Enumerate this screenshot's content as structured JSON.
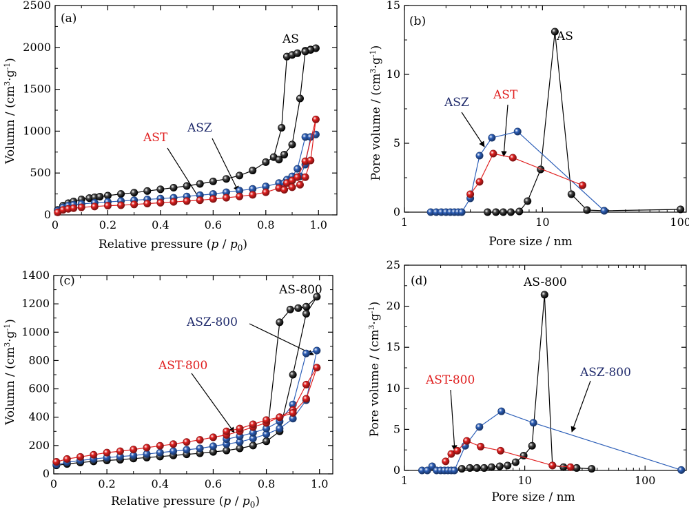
{
  "colors": {
    "AS": "#000000",
    "ASZ": "#2d5fb8",
    "AST": "#e02020",
    "ASZ_label": "#1f2a6b",
    "AST_label": "#e02020",
    "AS_label": "#000000"
  },
  "chart_data": [
    {
      "panel": "(a)",
      "type": "line",
      "xlabel": "Relative pressure (p / p0)",
      "ylabel": "Volumn / (cm3·g-1)",
      "xlim": [
        0,
        1.07
      ],
      "ylim": [
        0,
        2500
      ],
      "xticks": [
        0,
        0.2,
        0.4,
        0.6,
        0.8,
        1.0
      ],
      "xtick_labels": [
        "0",
        "0.2",
        "0.4",
        "0.6",
        "0.8",
        "1.0"
      ],
      "yticks": [
        0,
        500,
        1000,
        1500,
        2000,
        2500
      ],
      "ytick_labels": [
        "0",
        "500",
        "1000",
        "1500",
        "2000",
        "2500"
      ],
      "series": [
        {
          "name": "AS",
          "color_key": "AS",
          "x": [
            0.01,
            0.03,
            0.05,
            0.07,
            0.1,
            0.13,
            0.15,
            0.17,
            0.2,
            0.25,
            0.3,
            0.35,
            0.4,
            0.45,
            0.5,
            0.55,
            0.6,
            0.65,
            0.7,
            0.75,
            0.8,
            0.83,
            0.86,
            0.88,
            0.9,
            0.92,
            0.95,
            0.97,
            0.99,
            0.97,
            0.95,
            0.93,
            0.9,
            0.87,
            0.85
          ],
          "y": [
            60,
            110,
            140,
            160,
            185,
            200,
            210,
            218,
            230,
            250,
            265,
            285,
            305,
            325,
            345,
            370,
            400,
            430,
            470,
            530,
            630,
            690,
            1040,
            1890,
            1910,
            1930,
            1960,
            1975,
            1990,
            1970,
            1950,
            1390,
            840,
            720,
            660
          ]
        },
        {
          "name": "ASZ",
          "color_key": "ASZ",
          "x": [
            0.01,
            0.03,
            0.05,
            0.07,
            0.1,
            0.15,
            0.2,
            0.25,
            0.3,
            0.35,
            0.4,
            0.45,
            0.5,
            0.55,
            0.6,
            0.65,
            0.7,
            0.75,
            0.8,
            0.85,
            0.88,
            0.9,
            0.92,
            0.95,
            0.99,
            0.97,
            0.95,
            0.93,
            0.9,
            0.87
          ],
          "y": [
            50,
            90,
            110,
            120,
            130,
            145,
            155,
            165,
            175,
            185,
            195,
            205,
            220,
            235,
            250,
            270,
            290,
            310,
            340,
            380,
            420,
            460,
            550,
            930,
            960,
            930,
            600,
            460,
            410,
            380
          ]
        },
        {
          "name": "AST",
          "color_key": "AST",
          "x": [
            0.01,
            0.03,
            0.05,
            0.07,
            0.1,
            0.15,
            0.2,
            0.25,
            0.3,
            0.35,
            0.4,
            0.45,
            0.5,
            0.55,
            0.6,
            0.65,
            0.7,
            0.75,
            0.8,
            0.85,
            0.88,
            0.9,
            0.92,
            0.95,
            0.99,
            0.97,
            0.95,
            0.93,
            0.9,
            0.87
          ],
          "y": [
            30,
            60,
            72,
            80,
            90,
            100,
            110,
            115,
            125,
            135,
            145,
            155,
            165,
            175,
            190,
            205,
            220,
            240,
            270,
            320,
            380,
            410,
            450,
            640,
            1140,
            650,
            450,
            360,
            330,
            300
          ]
        }
      ],
      "annotations": [
        {
          "text": "AS",
          "color_key": "AS_label"
        },
        {
          "text": "AST",
          "color_key": "AST_label"
        },
        {
          "text": "ASZ",
          "color_key": "ASZ_label"
        }
      ]
    },
    {
      "panel": "(b)",
      "type": "line",
      "xscale": "log",
      "xlabel": "Pore size / nm",
      "ylabel": "Pore volume / (cm3·g-1)",
      "xlim": [
        1,
        110
      ],
      "ylim": [
        0,
        15
      ],
      "xticks": [
        1,
        10,
        100
      ],
      "xtick_labels": [
        "1",
        "10",
        "100"
      ],
      "yticks": [
        0,
        5,
        10,
        15
      ],
      "ytick_labels": [
        "0",
        "5",
        "10",
        "15"
      ],
      "series": [
        {
          "name": "AS",
          "color_key": "AS",
          "x": [
            4.0,
            4.6,
            5.2,
            5.9,
            6.8,
            7.8,
            9.7,
            12.3,
            16.2,
            21.0,
            28.0,
            100.0
          ],
          "y": [
            0,
            0,
            0,
            0,
            0.05,
            0.8,
            3.1,
            13.1,
            1.3,
            0.15,
            0.1,
            0.2
          ]
        },
        {
          "name": "ASZ",
          "color_key": "ASZ",
          "x": [
            1.55,
            1.7,
            1.85,
            2.0,
            2.15,
            2.3,
            2.45,
            2.6,
            3.0,
            3.5,
            4.3,
            6.6,
            28.0
          ],
          "y": [
            0,
            0,
            0,
            0,
            0,
            0,
            0,
            0,
            1.0,
            4.1,
            5.4,
            5.85,
            0.1
          ]
        },
        {
          "name": "AST",
          "color_key": "AST",
          "x": [
            3.0,
            3.5,
            4.4,
            6.1,
            19.5
          ],
          "y": [
            1.3,
            2.2,
            4.25,
            3.95,
            1.95
          ]
        }
      ],
      "annotations": [
        {
          "text": "AS",
          "color_key": "AS_label"
        },
        {
          "text": "ASZ",
          "color_key": "ASZ_label"
        },
        {
          "text": "AST",
          "color_key": "AST_label"
        }
      ]
    },
    {
      "panel": "(c)",
      "type": "line",
      "xlabel": "Relative pressure (p / p0)",
      "ylabel": "Volumn / (cm3·g-1)",
      "xlim": [
        0,
        1.05
      ],
      "ylim": [
        0,
        1400
      ],
      "xticks": [
        0,
        0.2,
        0.4,
        0.6,
        0.8,
        1.0
      ],
      "xtick_labels": [
        "0",
        "0.2",
        "0.4",
        "0.6",
        "0.8",
        "1.0"
      ],
      "yticks": [
        0,
        200,
        400,
        600,
        800,
        1000,
        1200,
        1400
      ],
      "ytick_labels": [
        "0",
        "200",
        "400",
        "600",
        "800",
        "1000",
        "1200",
        "1400"
      ],
      "series": [
        {
          "name": "AS-800",
          "color_key": "AS",
          "x": [
            0.01,
            0.05,
            0.1,
            0.15,
            0.2,
            0.25,
            0.3,
            0.35,
            0.4,
            0.45,
            0.5,
            0.55,
            0.6,
            0.65,
            0.7,
            0.75,
            0.8,
            0.85,
            0.9,
            0.95,
            0.99,
            0.95,
            0.92,
            0.89,
            0.85,
            0.8
          ],
          "y": [
            60,
            70,
            80,
            88,
            95,
            100,
            108,
            115,
            122,
            130,
            138,
            145,
            155,
            165,
            180,
            200,
            230,
            300,
            700,
            1130,
            1250,
            1180,
            1170,
            1160,
            1070,
            230
          ]
        },
        {
          "name": "ASZ-800",
          "color_key": "ASZ",
          "x": [
            0.01,
            0.05,
            0.1,
            0.15,
            0.2,
            0.25,
            0.3,
            0.35,
            0.4,
            0.45,
            0.5,
            0.55,
            0.6,
            0.65,
            0.7,
            0.75,
            0.8,
            0.85,
            0.9,
            0.95,
            0.99,
            0.95,
            0.9,
            0.85,
            0.8,
            0.75,
            0.7,
            0.65
          ],
          "y": [
            65,
            82,
            95,
            105,
            115,
            122,
            130,
            140,
            150,
            160,
            170,
            180,
            195,
            210,
            225,
            250,
            280,
            320,
            390,
            520,
            870,
            850,
            490,
            370,
            320,
            290,
            265,
            245
          ]
        },
        {
          "name": "AST-800",
          "color_key": "AST",
          "x": [
            0.01,
            0.05,
            0.1,
            0.15,
            0.2,
            0.25,
            0.3,
            0.35,
            0.4,
            0.45,
            0.5,
            0.55,
            0.6,
            0.65,
            0.7,
            0.75,
            0.8,
            0.85,
            0.9,
            0.95,
            0.99,
            0.95,
            0.9,
            0.85,
            0.8,
            0.75,
            0.7,
            0.65
          ],
          "y": [
            85,
            105,
            120,
            135,
            150,
            160,
            172,
            185,
            198,
            210,
            225,
            240,
            258,
            275,
            300,
            330,
            360,
            400,
            450,
            630,
            750,
            530,
            430,
            400,
            380,
            350,
            320,
            300
          ]
        }
      ],
      "annotations": [
        {
          "text": "AS-800",
          "color_key": "AS_label"
        },
        {
          "text": "ASZ-800",
          "color_key": "ASZ_label"
        },
        {
          "text": "AST-800",
          "color_key": "AST_label"
        }
      ]
    },
    {
      "panel": "(d)",
      "type": "line",
      "xscale": "log",
      "xlabel": "Pore size / nm",
      "ylabel": "Pore volume / (cm3·g-1)",
      "xlim": [
        1,
        220
      ],
      "ylim": [
        0,
        25
      ],
      "xticks": [
        1,
        10,
        100
      ],
      "xtick_labels": [
        "1",
        "10",
        "100"
      ],
      "yticks": [
        0,
        5,
        10,
        15,
        20,
        25
      ],
      "ytick_labels": [
        "0",
        "5",
        "10",
        "15",
        "20",
        "25"
      ],
      "series": [
        {
          "name": "AS-800",
          "color_key": "AS",
          "x": [
            3.0,
            3.5,
            4.0,
            4.6,
            5.3,
            6.2,
            7.2,
            8.4,
            9.8,
            11.5,
            14.6,
            17.0,
            21.0,
            27.0,
            36.0
          ],
          "y": [
            0.2,
            0.3,
            0.3,
            0.3,
            0.4,
            0.5,
            0.6,
            1.0,
            1.8,
            3.0,
            21.4,
            0.6,
            0.4,
            0.3,
            0.2
          ]
        },
        {
          "name": "ASZ-800",
          "color_key": "ASZ",
          "x": [
            1.4,
            1.55,
            1.7,
            1.85,
            2.0,
            2.15,
            2.3,
            2.45,
            2.6,
            3.2,
            4.2,
            6.4,
            11.8,
            200.0
          ],
          "y": [
            0,
            0,
            0.5,
            0,
            0,
            0,
            0,
            0,
            0,
            3.0,
            5.3,
            7.2,
            5.8,
            0.05
          ]
        },
        {
          "name": "AST-800",
          "color_key": "AST",
          "x": [
            2.2,
            2.45,
            2.75,
            3.3,
            4.3,
            6.3,
            17.0,
            24.0
          ],
          "y": [
            1.1,
            2.0,
            2.4,
            3.6,
            2.9,
            2.4,
            0.6,
            0.4
          ]
        }
      ],
      "annotations": [
        {
          "text": "AS-800",
          "color_key": "AS_label"
        },
        {
          "text": "ASZ-800",
          "color_key": "ASZ_label"
        },
        {
          "text": "AST-800",
          "color_key": "AST_label"
        }
      ]
    }
  ]
}
